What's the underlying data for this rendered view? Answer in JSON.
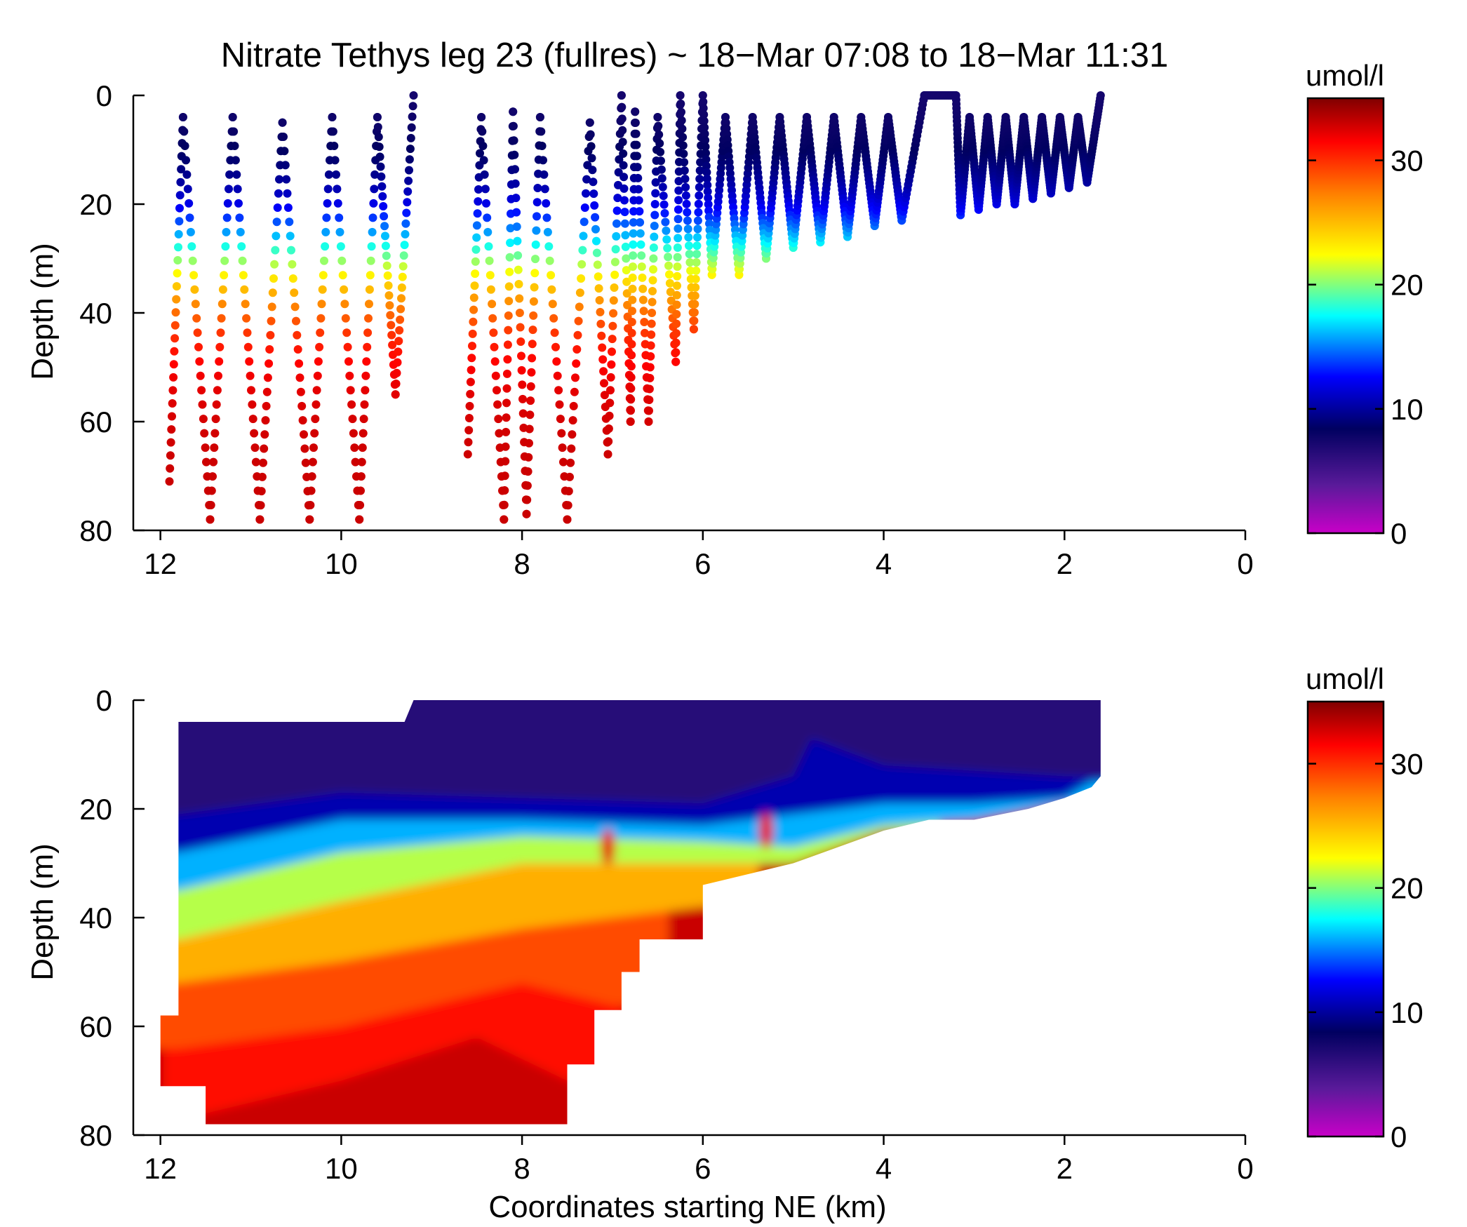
{
  "chart_data": [
    {
      "type": "scatter",
      "panel": "top",
      "title": "Nitrate Tethys leg 23 (fullres) ~ 18−Mar 07:08 to 18−Mar 11:31",
      "xlabel": "",
      "ylabel": "Depth (m)",
      "xlim": [
        12.3,
        0
      ],
      "ylim": [
        80,
        0
      ],
      "x_ticks": [
        "12",
        "10",
        "8",
        "6",
        "4",
        "2",
        "0"
      ],
      "y_ticks": [
        "0",
        "20",
        "40",
        "60",
        "80"
      ],
      "grid": false,
      "colorbar": {
        "label": "umol/l",
        "range": [
          0,
          35
        ],
        "ticks": [
          "0",
          "10",
          "20",
          "30"
        ],
        "colormap": "jet-like: magenta-purple-navy-blue-cyan-yellow-orange-red-darkred"
      },
      "profiles": [
        [
          11.9,
          71
        ],
        [
          11.75,
          4
        ],
        [
          11.45,
          78
        ],
        [
          11.2,
          4
        ],
        [
          10.9,
          78
        ],
        [
          10.65,
          5
        ],
        [
          10.35,
          78
        ],
        [
          10.1,
          4
        ],
        [
          9.8,
          78
        ],
        [
          9.6,
          4
        ],
        [
          9.4,
          55
        ],
        [
          9.2,
          0
        ],
        [
          8.6,
          66
        ],
        [
          8.45,
          4
        ],
        [
          8.2,
          78
        ],
        [
          8.1,
          3
        ],
        [
          7.95,
          77
        ],
        [
          7.8,
          4
        ],
        [
          7.5,
          78
        ],
        [
          7.25,
          5
        ],
        [
          7.05,
          66
        ],
        [
          6.9,
          0
        ],
        [
          6.8,
          60
        ],
        [
          6.75,
          3
        ],
        [
          6.6,
          60
        ],
        [
          6.5,
          4
        ],
        [
          6.3,
          49
        ],
        [
          6.25,
          0
        ],
        [
          6.1,
          43
        ],
        [
          6.0,
          0
        ],
        [
          5.9,
          33
        ],
        [
          5.75,
          4
        ],
        [
          5.6,
          33
        ],
        [
          5.45,
          4
        ],
        [
          5.3,
          30
        ],
        [
          5.15,
          4
        ],
        [
          5.0,
          28
        ],
        [
          4.85,
          4
        ],
        [
          4.7,
          27
        ],
        [
          4.55,
          4
        ],
        [
          4.4,
          26
        ],
        [
          4.25,
          4
        ],
        [
          4.1,
          24
        ],
        [
          3.95,
          4
        ],
        [
          3.8,
          23
        ],
        [
          3.55,
          0
        ],
        [
          3.2,
          0
        ],
        [
          3.15,
          22
        ],
        [
          3.05,
          4
        ],
        [
          2.95,
          21
        ],
        [
          2.85,
          4
        ],
        [
          2.75,
          20
        ],
        [
          2.65,
          4
        ],
        [
          2.55,
          20
        ],
        [
          2.45,
          4
        ],
        [
          2.35,
          19
        ],
        [
          2.25,
          4
        ],
        [
          2.15,
          18
        ],
        [
          2.05,
          4
        ],
        [
          1.95,
          17
        ],
        [
          1.85,
          4
        ],
        [
          1.75,
          16
        ],
        [
          1.6,
          0
        ]
      ]
    },
    {
      "type": "heatmap",
      "panel": "bottom",
      "title": "",
      "xlabel": "Coordinates starting NE (km)",
      "ylabel": "Depth (m)",
      "xlim": [
        12.3,
        0
      ],
      "ylim": [
        80,
        0
      ],
      "x_ticks": [
        "12",
        "10",
        "8",
        "6",
        "4",
        "2",
        "0"
      ],
      "y_ticks": [
        "0",
        "20",
        "40",
        "60",
        "80"
      ],
      "grid": false,
      "colorbar": {
        "label": "umol/l",
        "range": [
          0,
          35
        ],
        "ticks": [
          "0",
          "10",
          "20",
          "30"
        ]
      },
      "coverage_top_depth": [
        [
          11.8,
          4
        ],
        [
          9.3,
          4
        ],
        [
          9.2,
          0
        ],
        [
          1.6,
          0
        ],
        [
          1.6,
          14
        ]
      ],
      "coverage_bottom_depth": [
        [
          12.0,
          58
        ],
        [
          12.0,
          71
        ],
        [
          11.5,
          71
        ],
        [
          11.5,
          78
        ],
        [
          7.5,
          78
        ],
        [
          7.5,
          67
        ],
        [
          7.2,
          67
        ],
        [
          7.2,
          57
        ],
        [
          6.9,
          57
        ],
        [
          6.9,
          50
        ],
        [
          6.7,
          50
        ],
        [
          6.7,
          44
        ],
        [
          6.0,
          44
        ],
        [
          6.0,
          34
        ],
        [
          5.0,
          30
        ],
        [
          4.0,
          24
        ],
        [
          3.5,
          22
        ],
        [
          3.0,
          22
        ],
        [
          2.4,
          20
        ],
        [
          2.0,
          18
        ],
        [
          1.7,
          16
        ],
        [
          1.6,
          14
        ]
      ],
      "isolines": [
        {
          "value": 8,
          "points": [
            [
              11.8,
              21
            ],
            [
              10.0,
              17
            ],
            [
              8.0,
              18
            ],
            [
              6.0,
              19
            ],
            [
              5.0,
              14
            ],
            [
              4.8,
              7
            ],
            [
              4.0,
              12
            ],
            [
              3.0,
              13
            ],
            [
              2.0,
              14
            ],
            [
              1.7,
              14
            ]
          ]
        },
        {
          "value": 13,
          "points": [
            [
              11.8,
              28
            ],
            [
              10.0,
              22
            ],
            [
              8.0,
              22
            ],
            [
              6.0,
              23
            ],
            [
              5.0,
              21
            ],
            [
              4.0,
              19
            ],
            [
              3.0,
              19
            ],
            [
              2.0,
              18
            ],
            [
              1.7,
              15
            ]
          ]
        },
        {
          "value": 18,
          "points": [
            [
              11.8,
              35
            ],
            [
              10.0,
              28
            ],
            [
              8.0,
              25
            ],
            [
              6.0,
              26
            ],
            [
              5.0,
              27
            ],
            [
              4.0,
              23
            ],
            [
              3.0,
              22
            ],
            [
              2.0,
              19
            ]
          ]
        },
        {
          "value": 23,
          "points": [
            [
              11.8,
              44
            ],
            [
              10.0,
              37
            ],
            [
              8.0,
              30
            ],
            [
              6.0,
              30
            ],
            [
              5.0,
              30
            ],
            [
              4.0,
              24
            ]
          ]
        },
        {
          "value": 27,
          "points": [
            [
              11.8,
              52
            ],
            [
              10.0,
              48
            ],
            [
              8.0,
              42
            ],
            [
              6.0,
              38
            ]
          ]
        },
        {
          "value": 30,
          "points": [
            [
              11.8,
              64
            ],
            [
              10.0,
              60
            ],
            [
              8.0,
              52
            ],
            [
              7.0,
              56
            ]
          ]
        },
        {
          "value": 32,
          "points": [
            [
              11.5,
              76
            ],
            [
              10.0,
              70
            ],
            [
              8.5,
              62
            ],
            [
              7.5,
              70
            ]
          ]
        }
      ],
      "hotspots": [
        [
          7.05,
          27
        ],
        [
          5.3,
          24
        ]
      ]
    }
  ]
}
